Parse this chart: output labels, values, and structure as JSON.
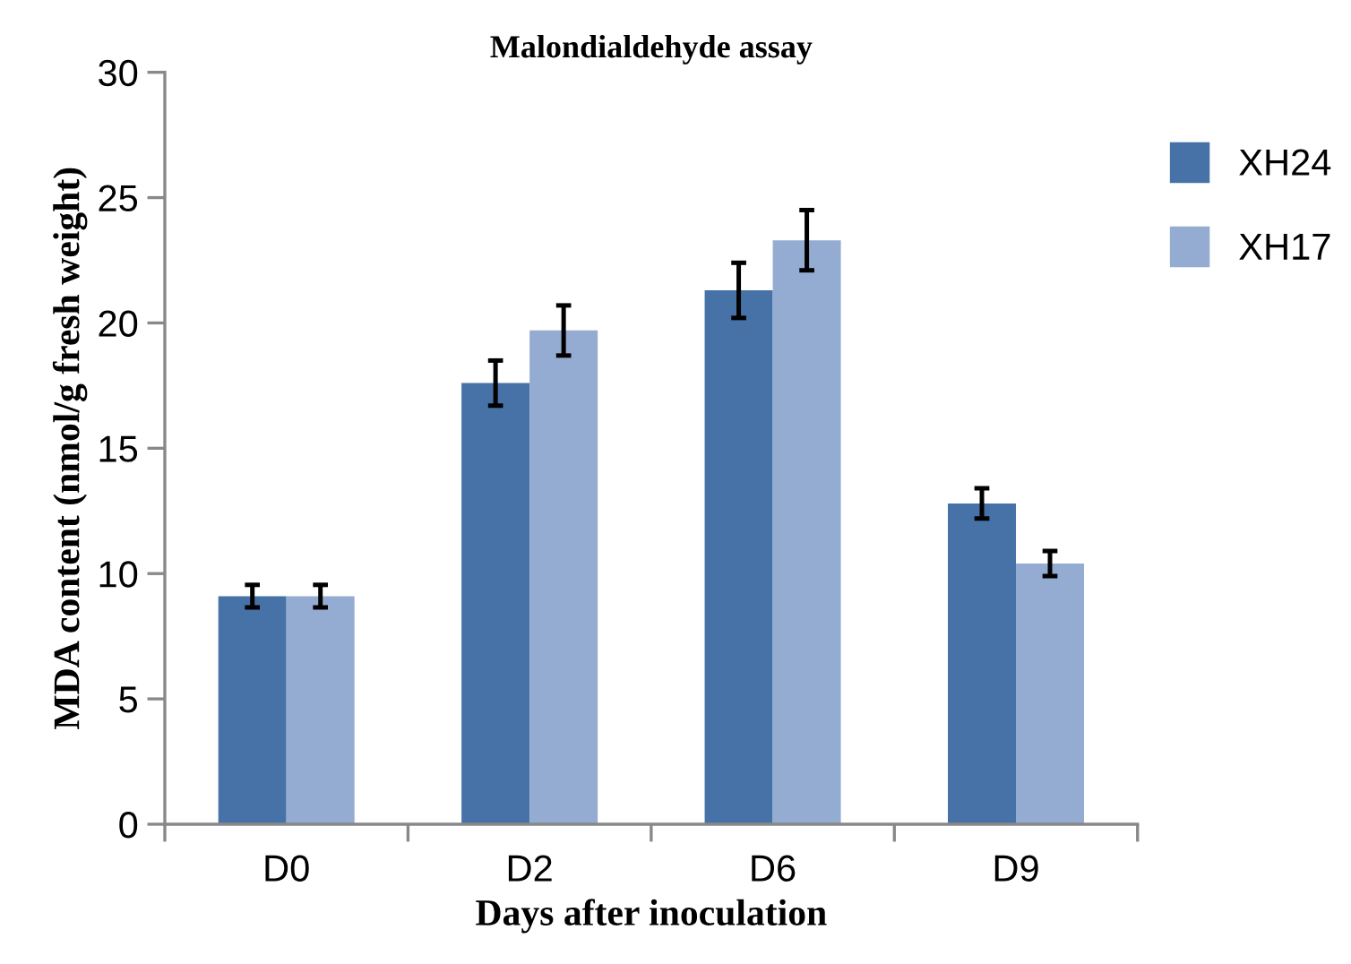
{
  "chart_data": {
    "type": "bar",
    "title": "Malondialdehyde assay",
    "xlabel": "Days after inoculation",
    "ylabel": "MDA content (nmol/g fresh weight)",
    "categories": [
      "D0",
      "D2",
      "D6",
      "D9"
    ],
    "series": [
      {
        "name": "XH24",
        "color": "#4672a8",
        "values": [
          9.1,
          17.6,
          21.3,
          12.8
        ],
        "errors": [
          0.45,
          0.9,
          1.1,
          0.6
        ]
      },
      {
        "name": "XH17",
        "color": "#94acd2",
        "values": [
          9.1,
          19.7,
          23.3,
          10.4
        ],
        "errors": [
          0.45,
          1.0,
          1.2,
          0.5
        ]
      }
    ],
    "ylim": [
      0,
      30
    ],
    "yticks": [
      0,
      5,
      10,
      15,
      20,
      25,
      30
    ],
    "grid": false,
    "legend": "top right"
  }
}
